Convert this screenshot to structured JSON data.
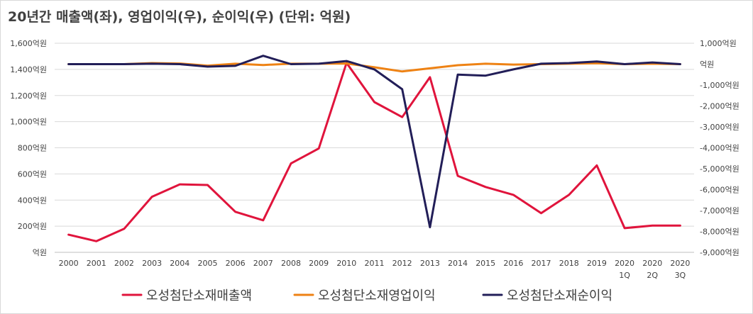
{
  "title": "20년간 매출액(좌), 영업이익(우), 순이익(우) (단위: 억원)",
  "chart_data": {
    "type": "line",
    "title": "20년간 매출액(좌), 영업이익(우), 순이익(우) (단위: 억원)",
    "categories": [
      [
        "2000"
      ],
      [
        "2001"
      ],
      [
        "2002"
      ],
      [
        "2003"
      ],
      [
        "2004"
      ],
      [
        "2005"
      ],
      [
        "2006"
      ],
      [
        "2007"
      ],
      [
        "2008"
      ],
      [
        "2009"
      ],
      [
        "2010"
      ],
      [
        "2011"
      ],
      [
        "2012"
      ],
      [
        "2013"
      ],
      [
        "2014"
      ],
      [
        "2015"
      ],
      [
        "2016"
      ],
      [
        "2017"
      ],
      [
        "2018"
      ],
      [
        "2019"
      ],
      [
        "2020",
        "1Q"
      ],
      [
        "2020",
        "2Q"
      ],
      [
        "2020",
        "3Q"
      ]
    ],
    "y_left": {
      "ylim": [
        0,
        1600
      ],
      "ticks": [
        0,
        200,
        400,
        600,
        800,
        1000,
        1200,
        1400,
        1600
      ],
      "tick_labels": [
        "억원",
        "200억원",
        "400억원",
        "600억원",
        "800억원",
        "1,000억원",
        "1,200억원",
        "1,400억원",
        "1,600억원"
      ]
    },
    "y_right": {
      "ylim": [
        -9000,
        1000
      ],
      "ticks": [
        -9000,
        -8000,
        -7000,
        -6000,
        -5000,
        -4000,
        -3000,
        -2000,
        -1000,
        0,
        1000
      ],
      "tick_labels": [
        "-9,000억원",
        "-8,000억원",
        "-7,000억원",
        "-6,000억원",
        "-5,000억원",
        "-4,000억원",
        "-3,000억원",
        "-2,000억원",
        "-1,000억원",
        "억원",
        "1,000억원"
      ]
    },
    "grid": true,
    "legend_position": "bottom",
    "series": [
      {
        "name": "오성첨단소재매출액",
        "axis": "left",
        "color": "#e0143c",
        "values": [
          135,
          85,
          180,
          425,
          520,
          515,
          310,
          245,
          680,
          795,
          1450,
          1150,
          1035,
          1340,
          585,
          500,
          440,
          300,
          440,
          665,
          185,
          205,
          205
        ]
      },
      {
        "name": "오성첨단소재영업이익",
        "axis": "right",
        "color": "#ee8214",
        "values": [
          0,
          0,
          0,
          50,
          30,
          -70,
          20,
          -40,
          20,
          20,
          30,
          -150,
          -350,
          -200,
          -50,
          20,
          -20,
          0,
          20,
          40,
          0,
          20,
          0
        ]
      },
      {
        "name": "오성첨단소재순이익",
        "axis": "right",
        "color": "#221e58",
        "values": [
          0,
          0,
          0,
          20,
          0,
          -120,
          -80,
          400,
          0,
          20,
          150,
          -250,
          -1200,
          -7800,
          -500,
          -550,
          -250,
          20,
          50,
          130,
          0,
          80,
          0
        ]
      }
    ]
  }
}
